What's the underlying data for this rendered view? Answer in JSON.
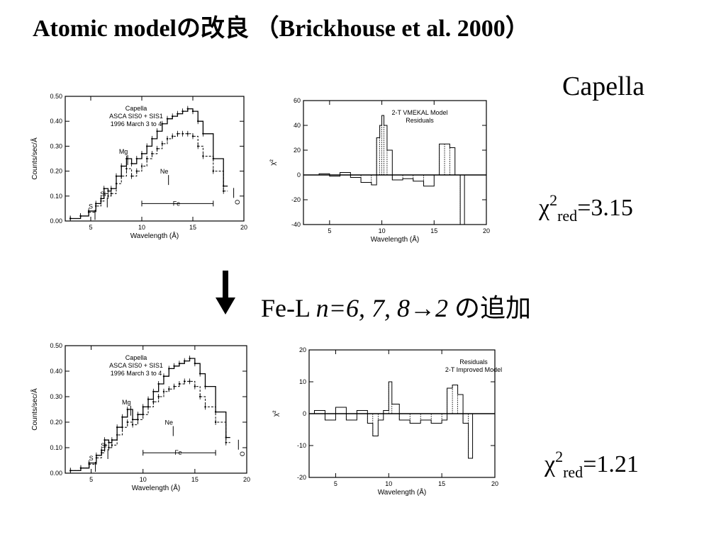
{
  "slide": {
    "title": "Atomic modelの改良 （Brickhouse et al. 2000）",
    "source_label": "Capella",
    "top_chi": {
      "chi": "χ",
      "sup": "2",
      "sub": "red",
      "value": "=3.15"
    },
    "bottom_chi": {
      "chi": "χ",
      "sup": "2",
      "sub": "red",
      "value": "=1.21"
    },
    "change": {
      "prefix": "Fe-L ",
      "lines": "n=6, 7, 8→2",
      "suffix": " の追加"
    }
  },
  "chart_data": [
    {
      "type": "line",
      "title": "Capella\nASCA SIS0 + SIS1\n1996 March 3 to 4",
      "xlabel": "Wavelength (Å)",
      "ylabel": "Counts/sec/Å",
      "xlim": [
        2.5,
        20
      ],
      "ylim": [
        0,
        0.5
      ],
      "xticks": [
        "5",
        "10",
        "15",
        "20"
      ],
      "yticks": [
        "0.00",
        "0.10",
        "0.20",
        "0.30",
        "0.40",
        "0.50"
      ],
      "annotations": [
        "S",
        "Si",
        "Mg",
        "Ne",
        "Fe",
        "O"
      ],
      "series": [
        {
          "style": "data",
          "x": [
            3,
            4,
            4.8,
            5.5,
            6,
            6.3,
            6.7,
            7,
            7.5,
            8,
            8.5,
            9,
            9.5,
            10,
            10.5,
            11,
            11.5,
            12,
            12.5,
            13,
            13.5,
            14,
            14.5,
            15,
            15.5,
            16,
            17,
            18
          ],
          "values": [
            0.01,
            0.02,
            0.04,
            0.07,
            0.09,
            0.13,
            0.12,
            0.13,
            0.18,
            0.22,
            0.25,
            0.23,
            0.25,
            0.27,
            0.3,
            0.33,
            0.36,
            0.39,
            0.41,
            0.42,
            0.43,
            0.44,
            0.45,
            0.44,
            0.4,
            0.35,
            0.25,
            0.14
          ]
        },
        {
          "style": "model",
          "x": [
            3,
            4,
            4.8,
            5.5,
            6,
            6.3,
            6.7,
            7,
            7.5,
            8,
            8.5,
            9,
            9.5,
            10,
            10.5,
            11,
            11.5,
            12,
            12.5,
            13,
            13.5,
            14,
            14.5,
            15,
            15.5,
            16,
            17,
            18
          ],
          "values": [
            0.01,
            0.02,
            0.035,
            0.06,
            0.08,
            0.11,
            0.1,
            0.11,
            0.15,
            0.18,
            0.21,
            0.18,
            0.2,
            0.22,
            0.25,
            0.27,
            0.29,
            0.31,
            0.33,
            0.34,
            0.35,
            0.35,
            0.35,
            0.34,
            0.3,
            0.26,
            0.2,
            0.12
          ]
        }
      ]
    },
    {
      "type": "line",
      "title": "2-T VMEKAL Model\nResiduals",
      "xlabel": "Wavelength (Å)",
      "ylabel": "χ²",
      "xlim": [
        2.5,
        20
      ],
      "ylim": [
        -40,
        60
      ],
      "xticks": [
        "5",
        "10",
        "15",
        "20"
      ],
      "yticks": [
        "-40",
        "-20",
        "0",
        "20",
        "40",
        "60"
      ],
      "series": [
        {
          "style": "residual",
          "x": [
            3,
            4,
            5,
            6,
            7,
            8,
            9,
            9.5,
            9.8,
            10,
            10.2,
            10.5,
            11,
            12,
            13,
            14,
            15,
            15.5,
            16,
            16.5,
            17,
            17.5
          ],
          "values": [
            0,
            1,
            -1,
            2,
            -2,
            -6,
            -8,
            30,
            40,
            48,
            40,
            20,
            -4,
            -3,
            -5,
            -9,
            0,
            25,
            25,
            22,
            0,
            -40
          ]
        }
      ]
    },
    {
      "type": "line",
      "title": "Capella\nASCA SIS0 + SIS1\n1996 March 3 to 4",
      "xlabel": "Wavelength (Å)",
      "ylabel": "Counts/sec/Å",
      "xlim": [
        2.5,
        20
      ],
      "ylim": [
        0,
        0.5
      ],
      "xticks": [
        "5",
        "10",
        "15",
        "20"
      ],
      "yticks": [
        "0.00",
        "0.10",
        "0.20",
        "0.30",
        "0.40",
        "0.50"
      ],
      "annotations": [
        "S",
        "Si",
        "Mg",
        "Ne",
        "Fe",
        "O"
      ],
      "series": [
        {
          "style": "data",
          "x": [
            3,
            4,
            4.8,
            5.5,
            6,
            6.3,
            6.7,
            7,
            7.5,
            8,
            8.5,
            9,
            9.5,
            10,
            10.5,
            11,
            11.5,
            12,
            12.5,
            13,
            13.5,
            14,
            14.5,
            15,
            15.5,
            16,
            17,
            18
          ],
          "values": [
            0.01,
            0.02,
            0.04,
            0.07,
            0.09,
            0.13,
            0.12,
            0.13,
            0.18,
            0.22,
            0.25,
            0.21,
            0.23,
            0.26,
            0.29,
            0.32,
            0.35,
            0.38,
            0.41,
            0.42,
            0.43,
            0.44,
            0.45,
            0.43,
            0.39,
            0.34,
            0.24,
            0.14
          ]
        },
        {
          "style": "model",
          "x": [
            3,
            4,
            4.8,
            5.5,
            6,
            6.3,
            6.7,
            7,
            7.5,
            8,
            8.5,
            9,
            9.5,
            10,
            10.5,
            11,
            11.5,
            12,
            12.5,
            13,
            13.5,
            14,
            14.5,
            15,
            15.5,
            16,
            17,
            18
          ],
          "values": [
            0.01,
            0.02,
            0.035,
            0.06,
            0.08,
            0.11,
            0.1,
            0.11,
            0.15,
            0.18,
            0.2,
            0.19,
            0.21,
            0.23,
            0.26,
            0.28,
            0.3,
            0.32,
            0.33,
            0.34,
            0.35,
            0.36,
            0.36,
            0.34,
            0.3,
            0.26,
            0.2,
            0.12
          ]
        }
      ]
    },
    {
      "type": "line",
      "title": "Residuals\n2-T Improved Model",
      "xlabel": "Wavelength (Å)",
      "ylabel": "χ²",
      "xlim": [
        2.5,
        20
      ],
      "ylim": [
        -20,
        20
      ],
      "xticks": [
        "5",
        "10",
        "15",
        "20"
      ],
      "yticks": [
        "-20",
        "-10",
        "0",
        "10",
        "20"
      ],
      "series": [
        {
          "style": "residual",
          "x": [
            3,
            4,
            5,
            6,
            7,
            8,
            8.5,
            9,
            9.5,
            10,
            10.3,
            11,
            12,
            13,
            14,
            15,
            15.5,
            16,
            16.5,
            17,
            17.5
          ],
          "values": [
            1,
            -2,
            2,
            -2,
            1,
            -3,
            -7,
            -2,
            1,
            10,
            3,
            -2,
            -3,
            -2,
            -3,
            -2,
            8,
            9,
            6,
            -3,
            -14
          ]
        }
      ]
    }
  ]
}
